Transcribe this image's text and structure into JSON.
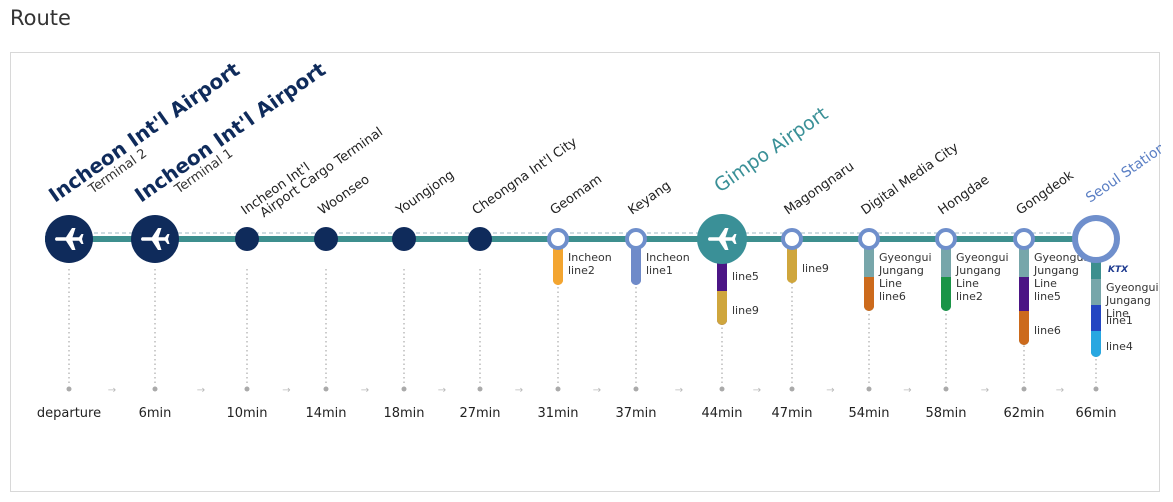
{
  "page_title": "Route",
  "colors": {
    "track": "#3d8f8e",
    "track_dash": "#9fbac3",
    "navy": "#0f2b5b",
    "airport_teal": "#3a9097",
    "ring": "#6f8fcc",
    "seoul_label": "#5b7fc4",
    "dotted": "#999999",
    "arrow": "#bbbbbb"
  },
  "stations": [
    {
      "name": "Incheon Int'l Airport",
      "sub": "Terminal 2",
      "time": "departure",
      "kind": "airport-navy",
      "lines": []
    },
    {
      "name": "Incheon Int'l Airport",
      "sub": "Terminal 1",
      "time": "6min",
      "kind": "airport-navy",
      "lines": []
    },
    {
      "name": "Incheon Int'l",
      "sub": "Airport Cargo Terminal",
      "time": "10min",
      "kind": "navy",
      "lines": []
    },
    {
      "name": "Woonseo",
      "time": "14min",
      "kind": "navy",
      "lines": []
    },
    {
      "name": "Youngjong",
      "time": "18min",
      "kind": "navy",
      "lines": []
    },
    {
      "name": "Cheongna Int'l City",
      "time": "27min",
      "kind": "navy",
      "lines": []
    },
    {
      "name": "Geomam",
      "time": "31min",
      "kind": "ring",
      "lines": [
        {
          "label": "Incheon line2",
          "color": "#f3a530"
        }
      ]
    },
    {
      "name": "Keyang",
      "time": "37min",
      "kind": "ring",
      "lines": [
        {
          "label": "Incheon line1",
          "color": "#6f8ac9"
        }
      ]
    },
    {
      "name": "Gimpo Airport",
      "time": "44min",
      "kind": "airport-teal",
      "lines": [
        {
          "label": "line5",
          "color": "#4b1585"
        },
        {
          "label": "line9",
          "color": "#cfa63d"
        }
      ]
    },
    {
      "name": "Magongnaru",
      "time": "47min",
      "kind": "ring",
      "lines": [
        {
          "label": "line9",
          "color": "#cfa63d"
        }
      ]
    },
    {
      "name": "Digital Media City",
      "time": "54min",
      "kind": "ring",
      "lines": [
        {
          "label": "Gyeongui Jungang Line",
          "color": "#77a6aa"
        },
        {
          "label": "line6",
          "color": "#cc6a1c"
        }
      ]
    },
    {
      "name": "Hongdae",
      "time": "58min",
      "kind": "ring",
      "lines": [
        {
          "label": "Gyeongui Jungang Line",
          "color": "#77a6aa"
        },
        {
          "label": "line2",
          "color": "#1a9447"
        }
      ]
    },
    {
      "name": "Gongdeok",
      "time": "62min",
      "kind": "ring",
      "lines": [
        {
          "label": "Gyeongui Jungang Line",
          "color": "#77a6aa"
        },
        {
          "label": "line5",
          "color": "#4b1585"
        },
        {
          "label": "line6",
          "color": "#cc6a1c"
        }
      ]
    },
    {
      "name": "Seoul Station",
      "time": "66min",
      "kind": "ring-large",
      "lines": [
        {
          "label": "KTX",
          "color": "#3d8f8e"
        },
        {
          "label": "Gyeongui Jungang Line",
          "color": "#77a6aa"
        },
        {
          "label": "line1",
          "color": "#2446c2"
        },
        {
          "label": "line4",
          "color": "#28a7e1"
        }
      ]
    }
  ]
}
